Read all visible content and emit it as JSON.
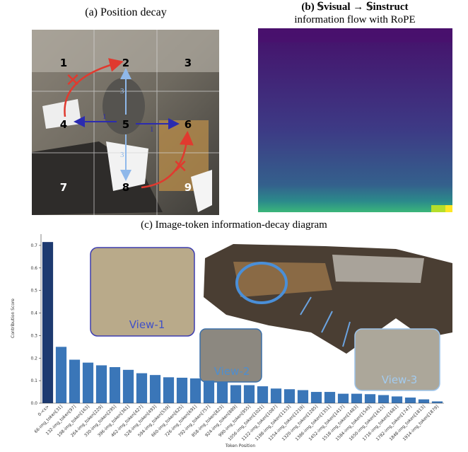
{
  "panel_a": {
    "title": "(a) Position decay",
    "cells": [
      "1",
      "2",
      "3",
      "4",
      "5",
      "6",
      "7",
      "8",
      "9"
    ],
    "arrow_labels": [
      "1",
      "1",
      "3",
      "3"
    ]
  },
  "panel_b": {
    "title": "(b) 𝕊visual → 𝕊instruct",
    "subtitle": "information flow with RoPE"
  },
  "chart_data": {
    "type": "bar",
    "title": "(c) Image-token information-decay diagram",
    "y_label": "Contribution Score",
    "x_label": "Token Position",
    "categories": [
      "0-<s>",
      "66-img_token[31]",
      "132-img_token[97]",
      "198-img_token[163]",
      "264-img_token[229]",
      "330-img_token[295]",
      "396-img_token[361]",
      "462-img_token[427]",
      "528-img_token[493]",
      "594-img_token[559]",
      "660-img_token[625]",
      "726-img_token[691]",
      "792-img_token[757]",
      "858-img_token[823]",
      "924-img_token[889]",
      "990-img_token[955]",
      "1056-img_token[1021]",
      "1122-img_token[1087]",
      "1188-img_token[1153]",
      "1254-img_token[1219]",
      "1320-img_token[1285]",
      "1386-img_token[1351]",
      "1452-img_token[1417]",
      "1518-img_token[1483]",
      "1584-img_token[1549]",
      "1650-img_token[1615]",
      "1716-img_token[1681]",
      "1782-img_token[1747]",
      "1848-img_token[1813]",
      "1914-img_token[1879]"
    ],
    "values": [
      0.715,
      0.25,
      0.193,
      0.18,
      0.168,
      0.16,
      0.148,
      0.133,
      0.125,
      0.115,
      0.113,
      0.11,
      0.1,
      0.095,
      0.08,
      0.08,
      0.075,
      0.065,
      0.062,
      0.058,
      0.05,
      0.05,
      0.042,
      0.042,
      0.04,
      0.036,
      0.03,
      0.025,
      0.017,
      0.008
    ],
    "colors": [
      "#1d3a70",
      "#3a76b8",
      "#3a76b8",
      "#3a76b8",
      "#3a76b8",
      "#3a76b8",
      "#3a76b8",
      "#3a76b8",
      "#3a76b8",
      "#3a76b8",
      "#3a76b8",
      "#3a76b8",
      "#3a76b8",
      "#3a76b8",
      "#3a76b8",
      "#3a76b8",
      "#3a76b8",
      "#3a76b8",
      "#3a76b8",
      "#3a76b8",
      "#3a76b8",
      "#3a76b8",
      "#3a76b8",
      "#3a76b8",
      "#3a76b8",
      "#3a76b8",
      "#3a76b8",
      "#3a76b8",
      "#3a76b8",
      "#3a76b8"
    ],
    "ylim": [
      0,
      0.75
    ],
    "yticks": [
      {
        "value": 0,
        "label": "0.0"
      },
      0.1,
      0.2,
      0.3,
      0.4,
      0.5,
      0.6,
      0.7
    ],
    "annotations": [
      "View-1",
      "View-2",
      "View-3"
    ]
  }
}
